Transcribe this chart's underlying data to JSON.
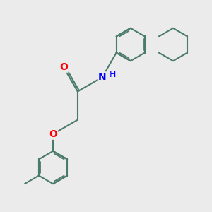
{
  "background_color": "#ebebeb",
  "bond_color": "#4a7a6a",
  "bond_width": 1.5,
  "atom_colors": {
    "O": "#ff0000",
    "N": "#0000ff"
  },
  "font_size_atom": 10,
  "figsize": [
    3.0,
    3.0
  ],
  "dpi": 100
}
